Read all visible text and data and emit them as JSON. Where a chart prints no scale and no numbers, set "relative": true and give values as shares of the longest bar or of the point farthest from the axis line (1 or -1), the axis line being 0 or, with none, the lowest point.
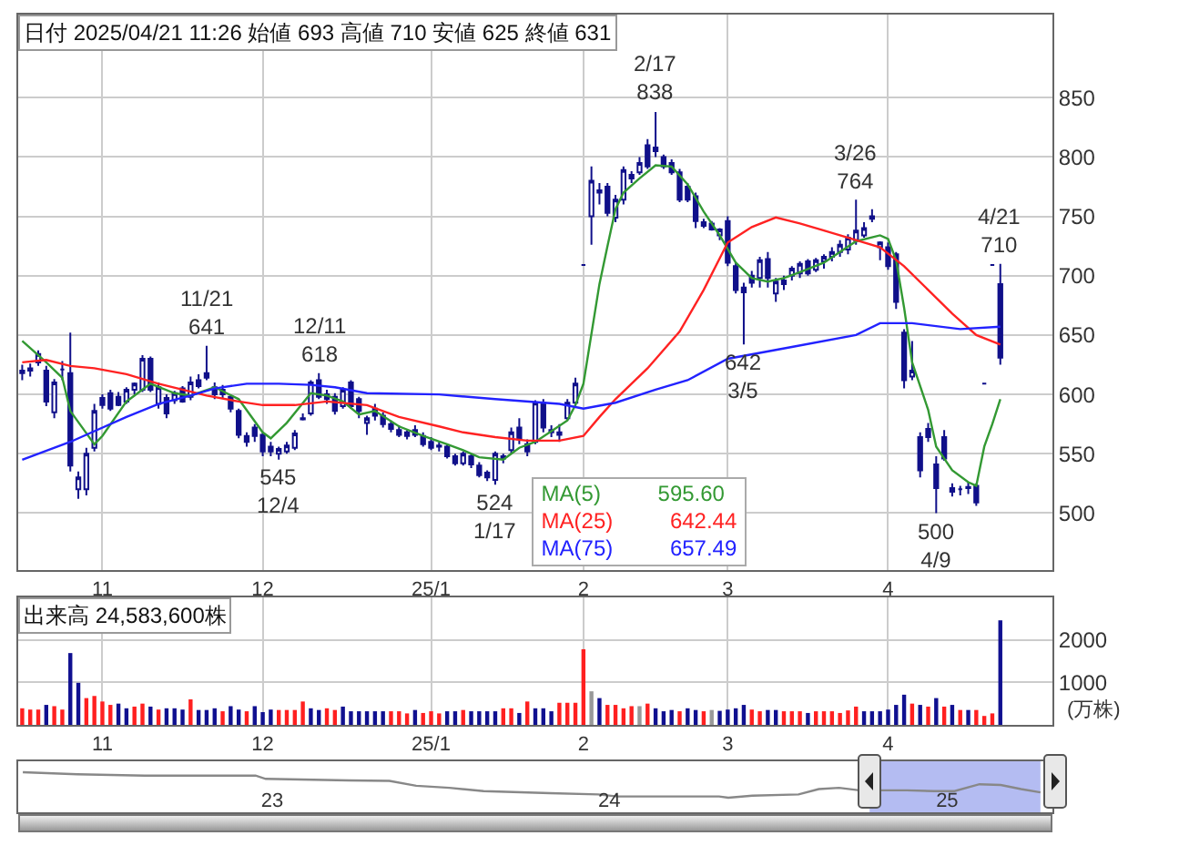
{
  "chart_data": [
    {
      "type": "candlestick",
      "color": "#10108a",
      "ylim": [
        452,
        920
      ],
      "yticks": [
        500,
        550,
        600,
        650,
        700,
        750,
        800,
        850
      ],
      "grid": true,
      "legend": "bottom",
      "categories": [
        null,
        null,
        null,
        null,
        null,
        null,
        null,
        null,
        null,
        null,
        "11",
        null,
        null,
        null,
        null,
        null,
        null,
        null,
        null,
        null,
        null,
        null,
        null,
        null,
        null,
        null,
        null,
        null,
        null,
        null,
        "12",
        null,
        null,
        null,
        null,
        null,
        null,
        null,
        null,
        null,
        null,
        null,
        null,
        null,
        null,
        null,
        null,
        null,
        null,
        null,
        null,
        "25/1",
        null,
        null,
        null,
        null,
        null,
        null,
        null,
        null,
        null,
        null,
        null,
        null,
        null,
        null,
        null,
        null,
        null,
        null,
        "2",
        null,
        null,
        null,
        null,
        null,
        null,
        null,
        null,
        null,
        null,
        null,
        null,
        null,
        null,
        null,
        null,
        null,
        "3",
        null,
        null,
        null,
        null,
        null,
        null,
        null,
        null,
        null,
        null,
        null,
        null,
        null,
        null,
        null,
        null,
        null,
        null,
        null,
        "4",
        null,
        null,
        null,
        null,
        null,
        null,
        null,
        null,
        null,
        null,
        null,
        null,
        null,
        null
      ],
      "ohlc": [
        [
          618,
          625,
          612,
          620
        ],
        [
          620,
          626,
          615,
          622
        ],
        [
          627,
          637,
          624,
          634
        ],
        [
          620,
          624,
          590,
          594
        ],
        [
          585,
          613,
          580,
          610
        ],
        [
          621,
          628,
          612,
          621
        ],
        [
          618,
          652,
          535,
          540
        ],
        [
          520,
          535,
          512,
          530
        ],
        [
          520,
          555,
          515,
          550
        ],
        [
          555,
          592,
          552,
          586
        ],
        [
          597,
          600,
          588,
          591
        ],
        [
          601,
          604,
          586,
          588
        ],
        [
          598,
          602,
          590,
          591
        ],
        [
          594,
          606,
          592,
          604
        ],
        [
          604,
          610,
          600,
          609
        ],
        [
          604,
          633,
          602,
          630
        ],
        [
          630,
          632,
          602,
          604
        ],
        [
          592,
          610,
          588,
          606
        ],
        [
          597,
          600,
          580,
          584
        ],
        [
          595,
          603,
          592,
          601
        ],
        [
          605,
          607,
          593,
          594
        ],
        [
          598,
          615,
          595,
          610
        ],
        [
          612,
          617,
          605,
          607
        ],
        [
          618,
          641,
          612,
          614
        ],
        [
          606,
          610,
          596,
          600
        ],
        [
          604,
          608,
          597,
          600
        ],
        [
          598,
          600,
          585,
          588
        ],
        [
          586,
          588,
          563,
          566
        ],
        [
          565,
          568,
          556,
          560
        ],
        [
          572,
          575,
          560,
          565
        ],
        [
          566,
          568,
          548,
          552
        ],
        [
          556,
          560,
          548,
          552
        ],
        [
          550,
          556,
          545,
          554
        ],
        [
          552,
          560,
          550,
          557
        ],
        [
          555,
          570,
          553,
          567
        ],
        [
          580,
          584,
          578,
          579
        ],
        [
          584,
          612,
          582,
          610
        ],
        [
          612,
          618,
          596,
          598
        ],
        [
          600,
          604,
          592,
          596
        ],
        [
          598,
          601,
          583,
          586
        ],
        [
          590,
          606,
          588,
          604
        ],
        [
          610,
          612,
          588,
          590
        ],
        [
          596,
          598,
          580,
          586
        ],
        [
          576,
          582,
          566,
          580
        ],
        [
          588,
          592,
          578,
          582
        ],
        [
          582,
          585,
          572,
          575
        ],
        [
          575,
          578,
          568,
          571
        ],
        [
          570,
          574,
          564,
          566
        ],
        [
          565,
          570,
          562,
          568
        ],
        [
          570,
          574,
          564,
          566
        ],
        [
          565,
          568,
          556,
          558
        ],
        [
          560,
          564,
          553,
          555
        ],
        [
          556,
          560,
          552,
          557
        ],
        [
          556,
          558,
          546,
          548
        ],
        [
          548,
          550,
          540,
          542
        ],
        [
          542,
          552,
          540,
          550
        ],
        [
          548,
          550,
          538,
          541
        ],
        [
          540,
          543,
          530,
          532
        ],
        [
          534,
          536,
          527,
          530
        ],
        [
          528,
          552,
          524,
          550
        ],
        [
          546,
          550,
          542,
          548
        ],
        [
          553,
          572,
          550,
          568
        ],
        [
          572,
          580,
          558,
          562
        ],
        [
          558,
          562,
          548,
          552
        ],
        [
          560,
          595,
          558,
          593
        ],
        [
          593,
          596,
          568,
          572
        ],
        [
          568,
          574,
          564,
          570
        ],
        [
          568,
          575,
          560,
          566
        ],
        [
          580,
          596,
          578,
          593
        ],
        [
          593,
          614,
          590,
          609
        ],
        [
          709,
          709,
          709,
          709
        ],
        [
          750,
          792,
          726,
          780
        ],
        [
          770,
          778,
          760,
          772
        ],
        [
          775,
          778,
          750,
          753
        ],
        [
          749,
          768,
          745,
          764
        ],
        [
          764,
          792,
          760,
          789
        ],
        [
          785,
          788,
          778,
          782
        ],
        [
          787,
          800,
          785,
          795
        ],
        [
          810,
          815,
          790,
          792
        ],
        [
          808,
          838,
          800,
          805
        ],
        [
          800,
          802,
          790,
          792
        ],
        [
          795,
          798,
          785,
          787
        ],
        [
          787,
          790,
          762,
          764
        ],
        [
          775,
          778,
          762,
          764
        ],
        [
          767,
          770,
          740,
          746
        ],
        [
          745,
          748,
          740,
          742
        ],
        [
          744,
          746,
          738,
          739
        ],
        [
          734,
          740,
          730,
          739
        ],
        [
          746,
          750,
          708,
          711
        ],
        [
          708,
          711,
          685,
          688
        ],
        [
          690,
          694,
          642,
          686
        ],
        [
          700,
          704,
          690,
          694
        ],
        [
          698,
          716,
          690,
          713
        ],
        [
          714,
          720,
          690,
          698
        ],
        [
          685,
          698,
          678,
          695
        ],
        [
          693,
          700,
          688,
          696
        ],
        [
          700,
          708,
          696,
          706
        ],
        [
          702,
          712,
          698,
          710
        ],
        [
          712,
          714,
          700,
          702
        ],
        [
          705,
          715,
          703,
          713
        ],
        [
          712,
          718,
          706,
          716
        ],
        [
          716,
          724,
          712,
          720
        ],
        [
          720,
          730,
          716,
          726
        ],
        [
          722,
          735,
          718,
          732
        ],
        [
          730,
          764,
          726,
          738
        ],
        [
          734,
          745,
          732,
          740
        ],
        [
          750,
          756,
          745,
          748
        ],
        [
          724,
          729,
          713,
          728
        ],
        [
          724,
          728,
          705,
          708
        ],
        [
          718,
          720,
          672,
          678
        ],
        [
          652,
          655,
          605,
          612
        ],
        [
          615,
          645,
          612,
          620
        ],
        [
          564,
          568,
          530,
          536
        ],
        [
          571,
          576,
          560,
          564
        ],
        [
          541,
          548,
          500,
          521
        ],
        [
          564,
          570,
          544,
          546
        ],
        [
          518,
          525,
          514,
          521
        ],
        [
          520,
          523,
          515,
          520
        ],
        [
          522,
          526,
          516,
          521
        ],
        [
          523,
          525,
          506,
          509
        ],
        [
          609,
          609,
          609,
          609
        ],
        [
          709,
          709,
          709,
          709
        ],
        [
          693,
          710,
          625,
          631
        ]
      ],
      "series": [
        {
          "type": "line",
          "name": "MA(5)",
          "color": "#339933",
          "values": [
            645,
            null,
            null,
            627,
            null,
            614,
            586,
            null,
            null,
            558,
            565,
            null,
            null,
            594,
            null,
            null,
            609,
            null,
            null,
            601,
            null,
            599,
            null,
            null,
            606,
            null,
            null,
            596,
            null,
            null,
            568,
            563,
            null,
            576,
            null,
            null,
            601,
            null,
            599,
            null,
            594,
            null,
            583,
            null,
            586,
            null,
            null,
            573,
            null,
            null,
            565,
            null,
            null,
            558,
            null,
            553,
            null,
            547,
            null,
            null,
            545,
            null,
            555,
            null,
            560,
            null,
            569,
            null,
            578,
            591,
            609,
            651,
            693,
            725,
            756,
            770,
            null,
            782,
            null,
            793,
            null,
            792,
            null,
            777,
            null,
            754,
            null,
            734,
            null,
            711,
            null,
            698,
            null,
            695,
            null,
            698,
            null,
            703,
            null,
            null,
            711,
            null,
            null,
            null,
            729,
            null,
            null,
            734,
            731,
            713,
            673,
            627,
            null,
            587,
            556,
            null,
            536,
            null,
            526,
            523,
            556,
            575,
            596
          ]
        },
        {
          "type": "line",
          "name": "MA(25)",
          "color": "#ff2222",
          "values": [
            627,
            null,
            null,
            629,
            null,
            null,
            624,
            null,
            null,
            622,
            null,
            null,
            null,
            617,
            null,
            null,
            null,
            609,
            null,
            null,
            604,
            null,
            null,
            599,
            null,
            null,
            null,
            594,
            null,
            null,
            591,
            null,
            null,
            null,
            591,
            null,
            null,
            null,
            594,
            null,
            null,
            null,
            null,
            591,
            null,
            null,
            null,
            581,
            null,
            null,
            null,
            null,
            573,
            null,
            null,
            568,
            null,
            null,
            null,
            564,
            null,
            null,
            null,
            561,
            null,
            null,
            null,
            561,
            null,
            null,
            565,
            null,
            581,
            null,
            596,
            null,
            null,
            null,
            622,
            null,
            null,
            null,
            653,
            null,
            null,
            688,
            null,
            null,
            728,
            null,
            null,
            741,
            null,
            null,
            749,
            null,
            null,
            744,
            null,
            null,
            738,
            null,
            734,
            null,
            null,
            null,
            null,
            724,
            null,
            null,
            708,
            null,
            null,
            688,
            null,
            null,
            668,
            null,
            null,
            650,
            null,
            null,
            642
          ]
        },
        {
          "type": "line",
          "name": "MA(75)",
          "color": "#2222ff",
          "values": [
            545,
            null,
            null,
            null,
            null,
            null,
            560,
            null,
            null,
            569,
            null,
            null,
            null,
            581,
            null,
            null,
            null,
            592,
            null,
            null,
            null,
            599,
            null,
            null,
            605,
            null,
            null,
            null,
            609,
            null,
            null,
            null,
            609,
            null,
            null,
            null,
            608,
            null,
            null,
            606,
            null,
            null,
            null,
            601,
            null,
            null,
            null,
            null,
            null,
            null,
            null,
            null,
            600,
            null,
            null,
            null,
            null,
            null,
            null,
            596,
            null,
            null,
            null,
            null,
            null,
            null,
            null,
            592,
            null,
            null,
            588,
            null,
            null,
            null,
            593,
            null,
            null,
            null,
            null,
            604,
            null,
            null,
            null,
            612,
            null,
            null,
            null,
            null,
            630,
            null,
            null,
            null,
            null,
            null,
            null,
            null,
            640,
            null,
            null,
            null,
            null,
            null,
            null,
            null,
            650,
            null,
            null,
            660,
            null,
            null,
            null,
            660,
            null,
            null,
            null,
            null,
            null,
            655,
            null,
            null,
            null,
            null,
            657
          ]
        }
      ],
      "annotations": [
        "日付 2025/04/21 11:26 始値 693 高値 710 安値 625 終値 631",
        "595.60",
        "642.44",
        "657.49",
        {
          "text": "11/21\n641",
          "y": 641
        },
        {
          "text": "12/11\n618",
          "y": 618
        },
        {
          "text": "545\n12/4",
          "y": 545
        },
        {
          "text": "524\n1/17",
          "y": 524
        },
        {
          "text": "2/17\n838",
          "y": 838
        },
        {
          "text": "642\n3/5",
          "y": 642
        },
        {
          "text": "3/26\n764",
          "y": 764
        },
        {
          "text": "500\n4/9",
          "y": 500
        },
        {
          "text": "4/21\n710",
          "y": 710
        }
      ]
    },
    {
      "type": "bar",
      "title": "出来高 24,583,600株",
      "ylabel": "(万株)",
      "ylim": [
        0,
        3000
      ],
      "yticks": [
        1000,
        2000
      ],
      "grid": true,
      "categories": [
        null,
        null,
        null,
        null,
        null,
        null,
        null,
        null,
        null,
        null,
        "11",
        null,
        null,
        null,
        null,
        null,
        null,
        null,
        null,
        null,
        null,
        null,
        null,
        null,
        null,
        null,
        null,
        null,
        null,
        null,
        "12",
        null,
        null,
        null,
        null,
        null,
        null,
        null,
        null,
        null,
        null,
        null,
        null,
        null,
        null,
        null,
        null,
        null,
        null,
        null,
        null,
        "25/1",
        null,
        null,
        null,
        null,
        null,
        null,
        null,
        null,
        null,
        null,
        null,
        null,
        null,
        null,
        null,
        null,
        null,
        null,
        "2",
        null,
        null,
        null,
        null,
        null,
        null,
        null,
        null,
        null,
        null,
        null,
        null,
        null,
        null,
        null,
        null,
        null,
        "3",
        null,
        null,
        null,
        null,
        null,
        null,
        null,
        null,
        null,
        null,
        null,
        null,
        null,
        null,
        null,
        null,
        null,
        null,
        null,
        "4",
        null,
        null,
        null,
        null,
        null,
        null,
        null,
        null,
        null,
        null,
        null,
        null,
        null,
        null
      ],
      "values": [
        390,
        360,
        360,
        470,
        440,
        360,
        1690,
        990,
        630,
        680,
        550,
        470,
        500,
        390,
        430,
        500,
        430,
        360,
        390,
        390,
        360,
        600,
        350,
        350,
        390,
        320,
        440,
        360,
        320,
        440,
        300,
        360,
        350,
        350,
        350,
        550,
        390,
        350,
        390,
        350,
        430,
        320,
        320,
        320,
        320,
        320,
        320,
        320,
        270,
        350,
        280,
        320,
        270,
        320,
        320,
        350,
        320,
        320,
        320,
        320,
        390,
        390,
        280,
        550,
        390,
        390,
        320,
        520,
        520,
        520,
        1780,
        790,
        630,
        470,
        470,
        390,
        440,
        440,
        500,
        390,
        320,
        350,
        320,
        390,
        350,
        320,
        350,
        330,
        360,
        390,
        470,
        360,
        320,
        350,
        350,
        320,
        320,
        320,
        280,
        320,
        320,
        320,
        280,
        340,
        430,
        320,
        320,
        320,
        360,
        470,
        710,
        500,
        470,
        430,
        630,
        430,
        470,
        350,
        350,
        350,
        210,
        270,
        2460
      ],
      "colors": [
        "#ff2020",
        "#ff2020",
        "#ff2020",
        "#101090",
        "#ff2020",
        "#ff2020",
        "#101090",
        "#101090",
        "#ff2020",
        "#ff2020",
        "#ff2020",
        "#ff2020",
        "#101090",
        "#101090",
        "#ff2020",
        "#ff2020",
        "#101090",
        "#ff2020",
        "#101090",
        "#101090",
        "#101090",
        "#ff2020",
        "#101090",
        "#101090",
        "#101090",
        "#ff2020",
        "#101090",
        "#101090",
        "#ff2020",
        "#101090",
        "#101090",
        "#101090",
        "#ff2020",
        "#ff2020",
        "#ff2020",
        "#ff2020",
        "#101090",
        "#101090",
        "#ff2020",
        "#ff2020",
        "#101090",
        "#101090",
        "#101090",
        "#101090",
        "#101090",
        "#101090",
        "#ff2020",
        "#ff2020",
        "#ff2020",
        "#101090",
        "#ff2020",
        "#ff2020",
        "#ff2020",
        "#101090",
        "#101090",
        "#ff2020",
        "#101090",
        "#101090",
        "#101090",
        "#101090",
        "#ff2020",
        "#ff2020",
        "#101090",
        "#ff2020",
        "#101090",
        "#101090",
        "#101090",
        "#ff2020",
        "#ff2020",
        "#ff2020",
        "#ff2020",
        "#999999",
        "#101090",
        "#ff2020",
        "#ff2020",
        "#ff2020",
        "#ff2020",
        "#999999",
        "#ff2020",
        "#101090",
        "#101090",
        "#101090",
        "#ff2020",
        "#101090",
        "#101090",
        "#ff2020",
        "#999999",
        "#101090",
        "#101090",
        "#101090",
        "#101090",
        "#ff2020",
        "#ff2020",
        "#101090",
        "#101090",
        "#ff2020",
        "#ff2020",
        "#ff2020",
        "#101090",
        "#ff2020",
        "#ff2020",
        "#ff2020",
        "#ff2020",
        "#ff2020",
        "#ff2020",
        "#101090",
        "#101090",
        "#101090",
        "#101090",
        "#101090",
        "#101090",
        "#ff2020",
        "#101090",
        "#ff2020",
        "#101090",
        "#ff2020",
        "#101090",
        "#ff2020",
        "#101090",
        "#ff2020",
        "#ff2020",
        "#ff2020",
        "#101090"
      ]
    },
    {
      "type": "line",
      "relative": true,
      "color": "#888888",
      "tick_labels": "x",
      "xlim": [
        "2022-04-10",
        "2025-05-04"
      ],
      "xticks": [
        {
          "value": "2023-01-10",
          "label": "23"
        },
        {
          "value": "2024-01-10",
          "label": "24"
        },
        {
          "value": "2025-01-10",
          "label": "25"
        }
      ],
      "bands": [
        {
          "axis": "x",
          "from": "2024-10-18",
          "to": "2025-04-21",
          "color": "#b4bcf2"
        }
      ],
      "x": [
        "2022-04-15",
        "2022-06-13",
        "2022-08-25",
        "2022-12-23",
        "2023-01-03",
        "2023-04-03",
        "2023-05-17",
        "2023-06-15",
        "2023-07-21",
        "2023-08-27",
        "2023-11-07",
        "2023-12-29",
        "2024-01-19",
        "2024-04-01",
        "2024-05-08",
        "2024-05-18",
        "2024-06-13",
        "2024-08-02",
        "2024-08-24",
        "2024-09-15",
        "2024-10-07",
        "2024-10-29",
        "2024-11-27",
        "2024-12-27",
        "2025-01-18",
        "2025-02-14",
        "2025-03-09",
        "2025-03-31",
        "2025-04-21"
      ],
      "values": [
        1,
        0.92,
        0.87,
        0.87,
        0.74,
        0.68,
        0.66,
        0.47,
        0.39,
        0.26,
        0.18,
        0.13,
        0.05,
        0.05,
        0.05,
        0,
        0.08,
        0.13,
        0.34,
        0.39,
        0.29,
        0.29,
        0.29,
        0.26,
        0.26,
        0.53,
        0.5,
        0.34,
        0.21
      ]
    }
  ]
}
